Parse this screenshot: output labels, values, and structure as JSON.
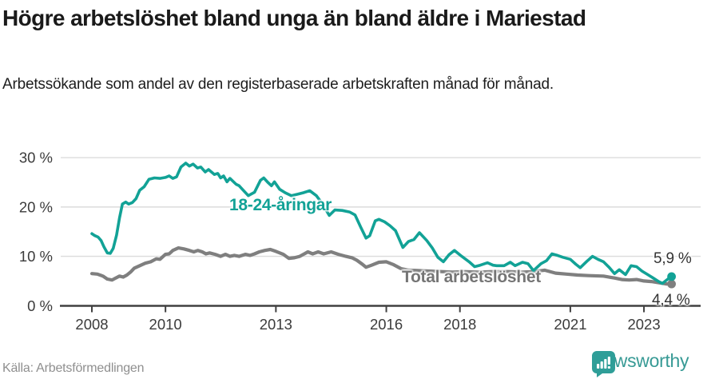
{
  "header": {
    "title": "Högre arbetslöshet bland unga än bland äldre i Mariestad",
    "subtitle": "Arbetssökande som andel av den registerbaserade arbetskraften månad för månad."
  },
  "chart_data": {
    "type": "line",
    "title": "Högre arbetslöshet bland unga än bland äldre i Mariestad",
    "subtitle": "Arbetssökande som andel av den registerbaserade arbetskraften månad för månad.",
    "xlabel": "",
    "ylabel": "",
    "xlim": [
      2007.85,
      2024.4
    ],
    "ylim": [
      0,
      32
    ],
    "grid": true,
    "legend_position": "inline-labels",
    "y_ticks": [
      {
        "value": 0,
        "label": "0 %"
      },
      {
        "value": 10,
        "label": "10 %"
      },
      {
        "value": 20,
        "label": "20 %"
      },
      {
        "value": 30,
        "label": "30 %"
      }
    ],
    "x_ticks": [
      {
        "year": 2008,
        "label": "2008"
      },
      {
        "year": 2010,
        "label": "2010"
      },
      {
        "year": 2013,
        "label": "2013"
      },
      {
        "year": 2016,
        "label": "2016"
      },
      {
        "year": 2018,
        "label": "2018"
      },
      {
        "year": 2021,
        "label": "2021"
      },
      {
        "year": 2023,
        "label": "2023"
      }
    ],
    "series": [
      {
        "name": "Total arbetslöshet",
        "color": "#7f7f7f",
        "line_width": 4.2,
        "end_value_label": "4,4 %",
        "points": [
          [
            2008.0,
            6.5
          ],
          [
            2008.15,
            6.4
          ],
          [
            2008.3,
            6.0
          ],
          [
            2008.42,
            5.4
          ],
          [
            2008.55,
            5.2
          ],
          [
            2008.65,
            5.6
          ],
          [
            2008.75,
            6.0
          ],
          [
            2008.85,
            5.8
          ],
          [
            2008.95,
            6.2
          ],
          [
            2009.05,
            6.8
          ],
          [
            2009.15,
            7.6
          ],
          [
            2009.3,
            8.1
          ],
          [
            2009.45,
            8.6
          ],
          [
            2009.6,
            8.9
          ],
          [
            2009.75,
            9.5
          ],
          [
            2009.85,
            9.4
          ],
          [
            2010.0,
            10.4
          ],
          [
            2010.1,
            10.5
          ],
          [
            2010.2,
            11.2
          ],
          [
            2010.35,
            11.7
          ],
          [
            2010.5,
            11.5
          ],
          [
            2010.65,
            11.2
          ],
          [
            2010.77,
            10.9
          ],
          [
            2010.88,
            11.2
          ],
          [
            2011.0,
            10.9
          ],
          [
            2011.1,
            10.5
          ],
          [
            2011.2,
            10.7
          ],
          [
            2011.35,
            10.4
          ],
          [
            2011.5,
            10.0
          ],
          [
            2011.63,
            10.4
          ],
          [
            2011.75,
            10.0
          ],
          [
            2011.87,
            10.2
          ],
          [
            2012.0,
            10.0
          ],
          [
            2012.17,
            10.4
          ],
          [
            2012.3,
            10.2
          ],
          [
            2012.42,
            10.5
          ],
          [
            2012.55,
            10.9
          ],
          [
            2012.7,
            11.2
          ],
          [
            2012.85,
            11.4
          ],
          [
            2013.0,
            11.0
          ],
          [
            2013.2,
            10.4
          ],
          [
            2013.35,
            9.6
          ],
          [
            2013.5,
            9.7
          ],
          [
            2013.65,
            10.0
          ],
          [
            2013.87,
            10.9
          ],
          [
            2014.0,
            10.5
          ],
          [
            2014.15,
            10.9
          ],
          [
            2014.3,
            10.5
          ],
          [
            2014.5,
            10.9
          ],
          [
            2014.7,
            10.4
          ],
          [
            2014.9,
            10.0
          ],
          [
            2015.07,
            9.7
          ],
          [
            2015.2,
            9.2
          ],
          [
            2015.35,
            8.4
          ],
          [
            2015.45,
            7.8
          ],
          [
            2015.6,
            8.2
          ],
          [
            2015.8,
            8.8
          ],
          [
            2016.0,
            8.9
          ],
          [
            2016.2,
            8.3
          ],
          [
            2016.4,
            7.5
          ],
          [
            2016.6,
            7.2
          ],
          [
            2016.9,
            7.1
          ],
          [
            2017.2,
            7.0
          ],
          [
            2017.5,
            6.9
          ],
          [
            2017.8,
            6.8
          ],
          [
            2018.1,
            6.9
          ],
          [
            2018.5,
            6.8
          ],
          [
            2018.9,
            6.9
          ],
          [
            2019.3,
            6.9
          ],
          [
            2019.7,
            6.8
          ],
          [
            2020.0,
            6.9
          ],
          [
            2020.3,
            7.2
          ],
          [
            2020.6,
            6.6
          ],
          [
            2020.9,
            6.4
          ],
          [
            2021.2,
            6.2
          ],
          [
            2021.5,
            6.1
          ],
          [
            2021.9,
            6.0
          ],
          [
            2022.2,
            5.6
          ],
          [
            2022.4,
            5.3
          ],
          [
            2022.6,
            5.2
          ],
          [
            2022.8,
            5.3
          ],
          [
            2023.0,
            5.0
          ],
          [
            2023.2,
            4.9
          ],
          [
            2023.45,
            4.6
          ],
          [
            2023.6,
            4.4
          ],
          [
            2023.75,
            4.4
          ]
        ]
      },
      {
        "name": "18-24-åringar",
        "color": "#12a296",
        "line_width": 3.6,
        "end_value_label": "5,9 %",
        "points": [
          [
            2008.0,
            14.6
          ],
          [
            2008.08,
            14.2
          ],
          [
            2008.17,
            13.9
          ],
          [
            2008.25,
            13.2
          ],
          [
            2008.33,
            11.9
          ],
          [
            2008.42,
            10.7
          ],
          [
            2008.5,
            10.6
          ],
          [
            2008.58,
            11.6
          ],
          [
            2008.67,
            14.3
          ],
          [
            2008.75,
            17.8
          ],
          [
            2008.83,
            20.6
          ],
          [
            2008.92,
            21.0
          ],
          [
            2009.0,
            20.6
          ],
          [
            2009.1,
            20.9
          ],
          [
            2009.2,
            21.7
          ],
          [
            2009.3,
            23.4
          ],
          [
            2009.42,
            24.1
          ],
          [
            2009.55,
            25.6
          ],
          [
            2009.7,
            25.9
          ],
          [
            2009.85,
            25.8
          ],
          [
            2010.0,
            26.0
          ],
          [
            2010.1,
            26.3
          ],
          [
            2010.2,
            25.8
          ],
          [
            2010.3,
            26.1
          ],
          [
            2010.42,
            28.1
          ],
          [
            2010.55,
            28.9
          ],
          [
            2010.65,
            28.3
          ],
          [
            2010.75,
            28.7
          ],
          [
            2010.87,
            27.9
          ],
          [
            2010.96,
            28.1
          ],
          [
            2011.08,
            27.1
          ],
          [
            2011.17,
            27.6
          ],
          [
            2011.33,
            26.6
          ],
          [
            2011.42,
            26.8
          ],
          [
            2011.5,
            25.9
          ],
          [
            2011.58,
            26.3
          ],
          [
            2011.67,
            25.1
          ],
          [
            2011.75,
            25.8
          ],
          [
            2011.92,
            24.6
          ],
          [
            2012.0,
            24.3
          ],
          [
            2012.1,
            23.5
          ],
          [
            2012.25,
            22.3
          ],
          [
            2012.42,
            23.0
          ],
          [
            2012.58,
            25.4
          ],
          [
            2012.67,
            25.9
          ],
          [
            2012.78,
            25.0
          ],
          [
            2012.88,
            24.3
          ],
          [
            2012.96,
            25.1
          ],
          [
            2013.1,
            23.6
          ],
          [
            2013.25,
            22.9
          ],
          [
            2013.42,
            22.3
          ],
          [
            2013.6,
            22.6
          ],
          [
            2013.75,
            22.9
          ],
          [
            2013.92,
            23.3
          ],
          [
            2014.1,
            22.3
          ],
          [
            2014.25,
            20.8
          ],
          [
            2014.45,
            18.3
          ],
          [
            2014.6,
            19.4
          ],
          [
            2014.8,
            19.3
          ],
          [
            2015.0,
            19.0
          ],
          [
            2015.15,
            18.4
          ],
          [
            2015.3,
            16.0
          ],
          [
            2015.45,
            13.7
          ],
          [
            2015.55,
            14.2
          ],
          [
            2015.7,
            17.2
          ],
          [
            2015.8,
            17.5
          ],
          [
            2015.95,
            17.0
          ],
          [
            2016.1,
            16.2
          ],
          [
            2016.25,
            15.2
          ],
          [
            2016.45,
            11.8
          ],
          [
            2016.6,
            13.0
          ],
          [
            2016.75,
            13.4
          ],
          [
            2016.9,
            14.8
          ],
          [
            2017.1,
            13.2
          ],
          [
            2017.25,
            11.7
          ],
          [
            2017.4,
            9.8
          ],
          [
            2017.55,
            8.9
          ],
          [
            2017.7,
            10.3
          ],
          [
            2017.85,
            11.2
          ],
          [
            2018.05,
            10.0
          ],
          [
            2018.25,
            8.9
          ],
          [
            2018.4,
            7.9
          ],
          [
            2018.55,
            8.2
          ],
          [
            2018.75,
            8.7
          ],
          [
            2018.9,
            8.2
          ],
          [
            2019.0,
            8.1
          ],
          [
            2019.2,
            8.1
          ],
          [
            2019.37,
            8.8
          ],
          [
            2019.5,
            8.1
          ],
          [
            2019.7,
            8.8
          ],
          [
            2019.85,
            8.5
          ],
          [
            2020.0,
            7.1
          ],
          [
            2020.2,
            8.5
          ],
          [
            2020.35,
            9.1
          ],
          [
            2020.5,
            10.5
          ],
          [
            2020.65,
            10.2
          ],
          [
            2020.8,
            9.8
          ],
          [
            2021.0,
            9.4
          ],
          [
            2021.15,
            8.4
          ],
          [
            2021.27,
            7.7
          ],
          [
            2021.45,
            9.0
          ],
          [
            2021.6,
            10.0
          ],
          [
            2021.75,
            9.4
          ],
          [
            2021.9,
            8.9
          ],
          [
            2022.05,
            7.8
          ],
          [
            2022.2,
            6.5
          ],
          [
            2022.33,
            7.3
          ],
          [
            2022.5,
            6.3
          ],
          [
            2022.65,
            8.1
          ],
          [
            2022.8,
            7.9
          ],
          [
            2022.95,
            7.0
          ],
          [
            2023.1,
            6.3
          ],
          [
            2023.25,
            5.6
          ],
          [
            2023.4,
            4.9
          ],
          [
            2023.5,
            4.5
          ],
          [
            2023.65,
            5.4
          ],
          [
            2023.75,
            5.9
          ]
        ]
      }
    ],
    "annotations": {
      "series_label_youth": "18-24-åringar",
      "series_label_total": "Total arbetslöshet",
      "end_label_youth": "5,9 %",
      "end_label_total": "4,4 %"
    }
  },
  "footer": {
    "source": "Källa: Arbetsförmedlingen",
    "brand_name": "Newsworthy"
  },
  "colors": {
    "accent_teal": "#12a296",
    "line_gray": "#7f7f7f",
    "grid": "#dcdcdc",
    "axis": "#404040",
    "tick_text": "#3b3b3b",
    "title_text": "#1a1a1a",
    "source_text": "#8f8f8f",
    "brand_teal": "#2f9e98"
  }
}
